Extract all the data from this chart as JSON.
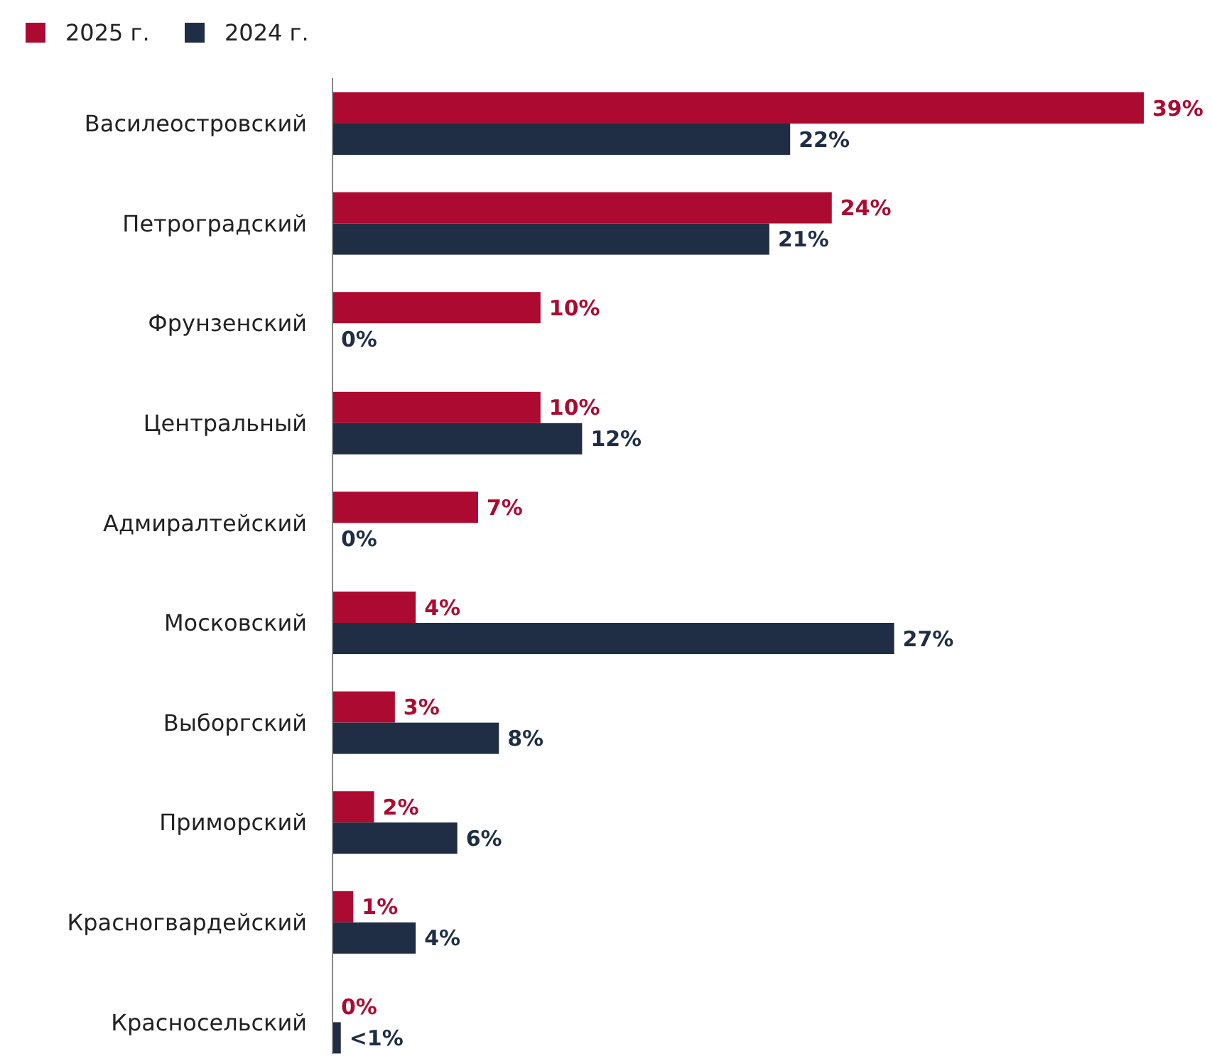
{
  "chart_data": {
    "type": "bar",
    "orientation": "horizontal",
    "legend": "top left",
    "categories": [
      "Василеостровский",
      "Петроградский",
      "Фрунзенский",
      "Центральный",
      "Адмиралтейский",
      "Московский",
      "Выборгский",
      "Приморский",
      "Красногвардейский",
      "Красносельский"
    ],
    "series": [
      {
        "name": "2025 г.",
        "color": "#ad0a31",
        "values": [
          39,
          24,
          10,
          10,
          7,
          4,
          3,
          2,
          1,
          0
        ],
        "value_labels": [
          "39%",
          "24%",
          "10%",
          "10%",
          "7%",
          "4%",
          "3%",
          "2%",
          "1%",
          "0%"
        ]
      },
      {
        "name": "2024 г.",
        "color": "#1f2e45",
        "values": [
          22,
          21,
          0,
          12,
          0,
          27,
          8,
          6,
          4,
          0.4
        ],
        "value_labels": [
          "22%",
          "21%",
          "0%",
          "12%",
          "0%",
          "27%",
          "8%",
          "6%",
          "4%",
          "<1%"
        ]
      }
    ]
  }
}
